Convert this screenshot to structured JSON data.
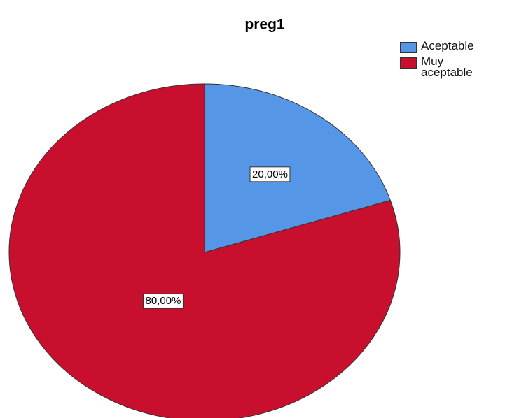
{
  "chart_data": {
    "type": "pie",
    "title": "preg1",
    "categories": [
      "Aceptable",
      "Muy aceptable"
    ],
    "values": [
      20,
      80
    ],
    "value_labels": [
      "20,00%",
      "80,00%"
    ],
    "colors": [
      "#5596e6",
      "#c8102e"
    ],
    "legend": "top-right"
  }
}
